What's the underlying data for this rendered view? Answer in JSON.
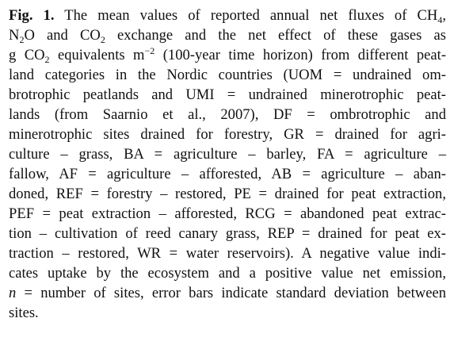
{
  "caption": {
    "label": "Fig. 1.",
    "lines": [
      {
        "segments": [
          {
            "t": " The mean values of reported annual net fluxes of CH"
          },
          {
            "t": "4",
            "sub": true
          },
          {
            "t": ","
          }
        ]
      },
      {
        "segments": [
          {
            "t": "N"
          },
          {
            "t": "2",
            "sub": true
          },
          {
            "t": "O and CO"
          },
          {
            "t": "2",
            "sub": true
          },
          {
            "t": " exchange and the net effect of these gases as"
          }
        ]
      },
      {
        "segments": [
          {
            "t": "g CO"
          },
          {
            "t": "2",
            "sub": true
          },
          {
            "t": " equivalents m"
          },
          {
            "t": "−2",
            "sup": true
          },
          {
            "t": " (100-year time horizon) from different peat-"
          }
        ]
      },
      {
        "segments": [
          {
            "t": "land categories in the Nordic countries (UOM = undrained om-"
          }
        ]
      },
      {
        "segments": [
          {
            "t": "brotrophic peatlands and UMI = undrained minerotrophic peat-"
          }
        ]
      },
      {
        "segments": [
          {
            "t": "lands (from Saarnio et al., 2007), DF = ombrotrophic and"
          }
        ]
      },
      {
        "segments": [
          {
            "t": "minerotrophic sites drained for forestry, GR = drained for agri-"
          }
        ]
      },
      {
        "segments": [
          {
            "t": "culture – grass, BA = agriculture – barley, FA = agriculture –"
          }
        ]
      },
      {
        "segments": [
          {
            "t": "fallow, AF = agriculture – afforested, AB = agriculture – aban-"
          }
        ]
      },
      {
        "segments": [
          {
            "t": "doned, REF = forestry – restored, PE = drained for peat extraction,"
          }
        ]
      },
      {
        "segments": [
          {
            "t": "PEF = peat extraction – afforested, RCG = abandoned peat extrac-"
          }
        ]
      },
      {
        "segments": [
          {
            "t": "tion – cultivation of reed canary grass, REP = drained for peat ex-"
          }
        ]
      },
      {
        "segments": [
          {
            "t": "traction – restored, WR = water reservoirs). A negative value indi-"
          }
        ]
      },
      {
        "segments": [
          {
            "t": "cates uptake by the ecosystem and a positive value net emission,"
          }
        ]
      },
      {
        "segments": [
          {
            "t": "n",
            "it": true
          },
          {
            "t": " = number of sites, error bars indicate standard deviation between"
          }
        ]
      },
      {
        "segments": [
          {
            "t": "sites."
          }
        ]
      }
    ]
  }
}
